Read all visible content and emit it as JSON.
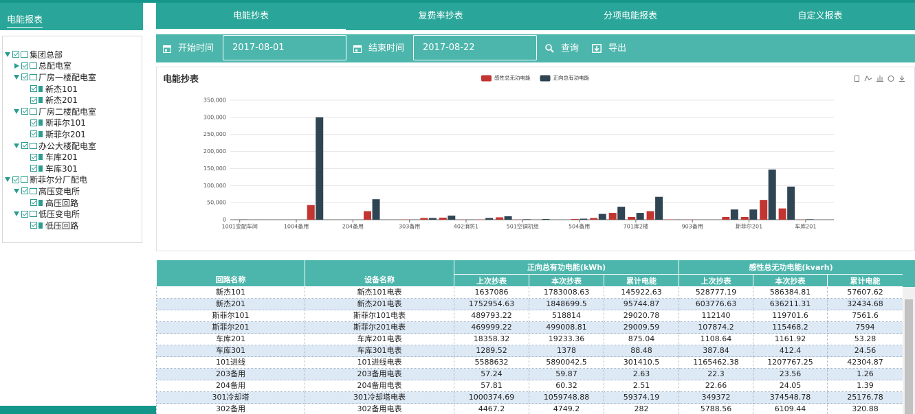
{
  "sidebar": {
    "title": "电能报表",
    "tree": [
      {
        "label": "集团总部",
        "children": [
          {
            "label": "总配电室",
            "children": []
          },
          {
            "label": "厂房一楼配电室",
            "children": [
              {
                "label": "新杰101"
              },
              {
                "label": "新杰201"
              }
            ]
          },
          {
            "label": "厂房二楼配电室",
            "children": [
              {
                "label": "斯菲尔101"
              },
              {
                "label": "斯菲尔201"
              }
            ]
          },
          {
            "label": "办公大楼配电室",
            "children": [
              {
                "label": "车库201"
              },
              {
                "label": "车库301"
              }
            ]
          }
        ]
      },
      {
        "label": "斯菲尔分厂配电",
        "children": [
          {
            "label": "高压变电所",
            "children": [
              {
                "label": "高压回路"
              }
            ]
          },
          {
            "label": "低压变电所",
            "children": [
              {
                "label": "低压回路"
              }
            ]
          }
        ]
      }
    ]
  },
  "tabs": [
    "电能抄表",
    "复费率抄表",
    "分项电能报表",
    "自定义报表"
  ],
  "toolbar": {
    "start_label": "开始时间",
    "start_date": "2017-08-01",
    "end_label": "结束时间",
    "end_date": "2017-08-22",
    "query": "查询",
    "export": "导出"
  },
  "chart_data": {
    "type": "bar",
    "title": "电能抄表",
    "categories": [
      "1001变配车间",
      null,
      null,
      "1004备用",
      null,
      null,
      "204备用",
      null,
      null,
      "303备用",
      null,
      null,
      "402消防1",
      null,
      null,
      "501空调机组",
      null,
      null,
      "504备用",
      null,
      null,
      "701库2楼",
      null,
      null,
      "903备用",
      null,
      null,
      "斯菲尔201",
      null,
      null,
      "车库201",
      null
    ],
    "series": [
      {
        "name": "感性总无功电能",
        "color": "#c23531",
        "values": [
          0,
          0,
          0,
          0,
          43000,
          0,
          0,
          25000,
          0,
          1000,
          5000,
          6000,
          500,
          1000,
          7000,
          500,
          0,
          0,
          2000,
          5000,
          20000,
          8000,
          25000,
          1000,
          500,
          0,
          8000,
          8000,
          58000,
          33000,
          500,
          0
        ]
      },
      {
        "name": "正向总有功电能",
        "color": "#2f4554",
        "values": [
          1000,
          0,
          0,
          0,
          300000,
          0,
          0,
          60000,
          0,
          500,
          5000,
          12000,
          500,
          5000,
          10000,
          1500,
          2000,
          0,
          3000,
          17000,
          38000,
          20000,
          67000,
          500,
          0,
          0,
          30000,
          30000,
          147000,
          97000,
          1500,
          0
        ]
      }
    ],
    "ylim": [
      0,
      350000
    ],
    "yticks": [
      0,
      {
        "value": 50000,
        "label": "50,000"
      },
      {
        "value": 100000,
        "label": "100,000"
      },
      {
        "value": 150000,
        "label": "150,000"
      },
      {
        "value": 200000,
        "label": "200,000"
      },
      {
        "value": 250000,
        "label": "250,000"
      },
      {
        "value": 300000,
        "label": "300,000"
      },
      {
        "value": 350000,
        "label": "350,000"
      }
    ],
    "grid": true,
    "legend": "top"
  },
  "table": {
    "columns": [
      "回路名称",
      "设备名称"
    ],
    "groups": [
      {
        "title": "正向总有功电能(kWh)",
        "columns": [
          "上次抄表",
          "本次抄表",
          "累计电能"
        ]
      },
      {
        "title": "感性总无功电能(kvarh)",
        "columns": [
          "上次抄表",
          "本次抄表",
          "累计电能"
        ]
      }
    ],
    "rows": [
      [
        "新杰101",
        "新杰101电表",
        "1637086",
        "1783008.63",
        "145922.63",
        "528777.19",
        "586384.81",
        "57607.62"
      ],
      [
        "新杰201",
        "新杰201电表",
        "1752954.63",
        "1848699.5",
        "95744.87",
        "603776.63",
        "636211.31",
        "32434.68"
      ],
      [
        "斯菲尔101",
        "斯菲尔101电表",
        "489793.22",
        "518814",
        "29020.78",
        "112140",
        "119701.6",
        "7561.6"
      ],
      [
        "斯菲尔201",
        "斯菲尔201电表",
        "469999.22",
        "499008.81",
        "29009.59",
        "107874.2",
        "115468.2",
        "7594"
      ],
      [
        "车库201",
        "车库201电表",
        "18358.32",
        "19233.36",
        "875.04",
        "1108.64",
        "1161.92",
        "53.28"
      ],
      [
        "车库301",
        "车库301电表",
        "1289.52",
        "1378",
        "88.48",
        "387.84",
        "412.4",
        "24.56"
      ],
      [
        "101进线",
        "101进线电表",
        "5588632",
        "5890042.5",
        "301410.5",
        "1165462.38",
        "1207767.25",
        "42304.87"
      ],
      [
        "203备用",
        "203备用电表",
        "57.24",
        "59.87",
        "2.63",
        "22.3",
        "23.56",
        "1.26"
      ],
      [
        "204备用",
        "204备用电表",
        "57.81",
        "60.32",
        "2.51",
        "22.66",
        "24.05",
        "1.39"
      ],
      [
        "301冷却塔",
        "301冷却塔电表",
        "1000374.69",
        "1059748.88",
        "59374.19",
        "349372",
        "374548.78",
        "25176.78"
      ],
      [
        "302备用",
        "302备用电表",
        "4467.2",
        "4749.2",
        "282",
        "5788.56",
        "6109.44",
        "320.88"
      ]
    ]
  }
}
